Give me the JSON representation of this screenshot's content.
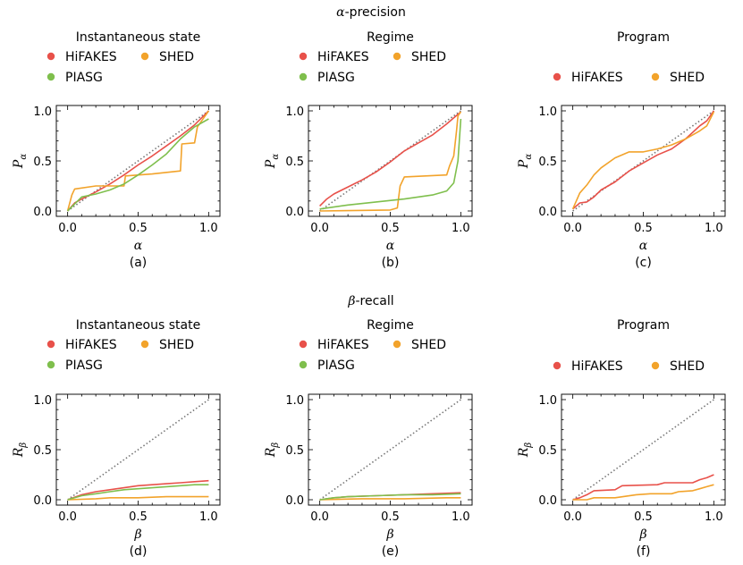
{
  "figure": {
    "sections": [
      {
        "title": "α-precision",
        "title_prefix": "α",
        "title_suffix": "-precision"
      },
      {
        "title": "β-recall",
        "title_prefix": "β",
        "title_suffix": "-recall"
      }
    ]
  },
  "colors": {
    "HiFAKES": "#e8514a",
    "SHED": "#f2a32b",
    "PIASG": "#7fbf4d",
    "diagonal": "#777777"
  },
  "chart_data": [
    {
      "type": "line",
      "panel": "(a)",
      "title": "Instantaneous state",
      "xlabel": "α",
      "ylabel": "P",
      "ylabel_sub": "α",
      "xlim": [
        0,
        1
      ],
      "ylim": [
        0,
        1
      ],
      "xticks": [
        "0.0",
        "0.5",
        "1.0"
      ],
      "yticks": [
        "0.0",
        "0.5",
        "1.0"
      ],
      "legend": [
        "HiFAKES",
        "SHED",
        "PIASG"
      ],
      "diagonal": true,
      "series": [
        {
          "name": "HiFAKES",
          "x": [
            0,
            0.05,
            0.1,
            0.2,
            0.3,
            0.4,
            0.5,
            0.6,
            0.7,
            0.8,
            0.9,
            1.0
          ],
          "y": [
            0,
            0.08,
            0.12,
            0.19,
            0.27,
            0.36,
            0.46,
            0.55,
            0.65,
            0.75,
            0.86,
            1.0
          ]
        },
        {
          "name": "SHED",
          "x": [
            0,
            0.03,
            0.05,
            0.2,
            0.4,
            0.41,
            0.6,
            0.8,
            0.81,
            0.9,
            0.92,
            1.0
          ],
          "y": [
            0,
            0.16,
            0.22,
            0.25,
            0.25,
            0.35,
            0.37,
            0.4,
            0.67,
            0.68,
            0.84,
            1.0
          ]
        },
        {
          "name": "PIASG",
          "x": [
            0,
            0.1,
            0.2,
            0.3,
            0.4,
            0.5,
            0.6,
            0.7,
            0.8,
            0.9,
            1.0
          ],
          "y": [
            0,
            0.14,
            0.17,
            0.21,
            0.27,
            0.36,
            0.46,
            0.57,
            0.72,
            0.84,
            0.92
          ]
        }
      ]
    },
    {
      "type": "line",
      "panel": "(b)",
      "title": "Regime",
      "xlabel": "α",
      "ylabel": "P",
      "ylabel_sub": "α",
      "xlim": [
        0,
        1
      ],
      "ylim": [
        0,
        1
      ],
      "xticks": [
        "0.0",
        "0.5",
        "1.0"
      ],
      "yticks": [
        "0.0",
        "0.5",
        "1.0"
      ],
      "legend": [
        "HiFAKES",
        "SHED",
        "PIASG"
      ],
      "diagonal": true,
      "series": [
        {
          "name": "HiFAKES",
          "x": [
            0,
            0.05,
            0.1,
            0.2,
            0.3,
            0.4,
            0.5,
            0.6,
            0.7,
            0.8,
            0.9,
            1.0
          ],
          "y": [
            0.05,
            0.12,
            0.17,
            0.24,
            0.31,
            0.39,
            0.49,
            0.6,
            0.68,
            0.76,
            0.87,
            0.99
          ]
        },
        {
          "name": "SHED",
          "x": [
            0,
            0.5,
            0.55,
            0.57,
            0.6,
            0.9,
            0.92,
            0.95,
            0.97,
            0.98,
            1.0
          ],
          "y": [
            0,
            0.01,
            0.03,
            0.25,
            0.34,
            0.36,
            0.45,
            0.55,
            0.8,
            0.95,
            0.99
          ]
        },
        {
          "name": "PIASG",
          "x": [
            0,
            0.2,
            0.4,
            0.6,
            0.8,
            0.9,
            0.95,
            0.98,
            1.0
          ],
          "y": [
            0.02,
            0.06,
            0.09,
            0.12,
            0.16,
            0.2,
            0.28,
            0.5,
            0.92
          ]
        }
      ]
    },
    {
      "type": "line",
      "panel": "(c)",
      "title": "Program",
      "xlabel": "α",
      "ylabel": "P",
      "ylabel_sub": "α",
      "xlim": [
        0,
        1
      ],
      "ylim": [
        0,
        1
      ],
      "xticks": [
        "0.0",
        "0.5",
        "1.0"
      ],
      "yticks": [
        "0.0",
        "0.5",
        "1.0"
      ],
      "legend": [
        "HiFAKES",
        "SHED"
      ],
      "diagonal": true,
      "series": [
        {
          "name": "HiFAKES",
          "x": [
            0,
            0.05,
            0.1,
            0.15,
            0.2,
            0.3,
            0.4,
            0.5,
            0.6,
            0.7,
            0.8,
            0.9,
            0.95,
            1.0
          ],
          "y": [
            0.02,
            0.08,
            0.09,
            0.14,
            0.21,
            0.29,
            0.4,
            0.48,
            0.56,
            0.62,
            0.72,
            0.85,
            0.9,
            1.0
          ]
        },
        {
          "name": "SHED",
          "x": [
            0,
            0.05,
            0.1,
            0.15,
            0.2,
            0.3,
            0.4,
            0.5,
            0.6,
            0.7,
            0.8,
            0.9,
            0.95,
            1.0
          ],
          "y": [
            0.02,
            0.18,
            0.26,
            0.36,
            0.43,
            0.53,
            0.59,
            0.59,
            0.62,
            0.66,
            0.72,
            0.8,
            0.85,
            0.99
          ]
        }
      ]
    },
    {
      "type": "line",
      "panel": "(d)",
      "title": "Instantaneous state",
      "xlabel": "β",
      "ylabel": "R",
      "ylabel_sub": "β",
      "xlim": [
        0,
        1
      ],
      "ylim": [
        0,
        1
      ],
      "xticks": [
        "0.0",
        "0.5",
        "1.0"
      ],
      "yticks": [
        "0.0",
        "0.5",
        "1.0"
      ],
      "legend": [
        "HiFAKES",
        "SHED",
        "PIASG"
      ],
      "diagonal": true,
      "series": [
        {
          "name": "HiFAKES",
          "x": [
            0,
            0.1,
            0.2,
            0.3,
            0.4,
            0.5,
            0.6,
            0.7,
            0.8,
            0.9,
            1.0
          ],
          "y": [
            0,
            0.05,
            0.08,
            0.1,
            0.12,
            0.14,
            0.15,
            0.16,
            0.17,
            0.18,
            0.19
          ]
        },
        {
          "name": "SHED",
          "x": [
            0,
            0.2,
            0.3,
            0.5,
            0.7,
            0.9,
            1.0
          ],
          "y": [
            0,
            0.01,
            0.02,
            0.02,
            0.03,
            0.03,
            0.03
          ]
        },
        {
          "name": "PIASG",
          "x": [
            0,
            0.1,
            0.2,
            0.3,
            0.4,
            0.5,
            0.6,
            0.7,
            0.8,
            0.9,
            1.0
          ],
          "y": [
            0,
            0.04,
            0.06,
            0.08,
            0.1,
            0.11,
            0.12,
            0.13,
            0.14,
            0.15,
            0.15
          ]
        }
      ]
    },
    {
      "type": "line",
      "panel": "(e)",
      "title": "Regime",
      "xlabel": "β",
      "ylabel": "R",
      "ylabel_sub": "β",
      "xlim": [
        0,
        1
      ],
      "ylim": [
        0,
        1
      ],
      "xticks": [
        "0.0",
        "0.5",
        "1.0"
      ],
      "yticks": [
        "0.0",
        "0.5",
        "1.0"
      ],
      "legend": [
        "HiFAKES",
        "SHED",
        "PIASG"
      ],
      "diagonal": true,
      "series": [
        {
          "name": "HiFAKES",
          "x": [
            0,
            0.1,
            0.2,
            0.4,
            0.6,
            0.8,
            1.0
          ],
          "y": [
            0,
            0.02,
            0.03,
            0.04,
            0.05,
            0.06,
            0.07
          ]
        },
        {
          "name": "SHED",
          "x": [
            0,
            0.3,
            0.6,
            0.9,
            1.0
          ],
          "y": [
            0,
            0.01,
            0.01,
            0.02,
            0.02
          ]
        },
        {
          "name": "PIASG",
          "x": [
            0,
            0.1,
            0.2,
            0.4,
            0.6,
            0.8,
            1.0
          ],
          "y": [
            0,
            0.02,
            0.03,
            0.04,
            0.05,
            0.05,
            0.06
          ]
        }
      ]
    },
    {
      "type": "line",
      "panel": "(f)",
      "title": "Program",
      "xlabel": "β",
      "ylabel": "R",
      "ylabel_sub": "β",
      "xlim": [
        0,
        1
      ],
      "ylim": [
        0,
        1
      ],
      "xticks": [
        "0.0",
        "0.5",
        "1.0"
      ],
      "yticks": [
        "0.0",
        "0.5",
        "1.0"
      ],
      "legend": [
        "HiFAKES",
        "SHED"
      ],
      "diagonal": true,
      "series": [
        {
          "name": "HiFAKES",
          "x": [
            0,
            0.05,
            0.1,
            0.15,
            0.3,
            0.35,
            0.6,
            0.65,
            0.85,
            0.9,
            0.95,
            1.0
          ],
          "y": [
            0,
            0.02,
            0.05,
            0.09,
            0.1,
            0.14,
            0.15,
            0.17,
            0.17,
            0.2,
            0.22,
            0.25
          ]
        },
        {
          "name": "SHED",
          "x": [
            0,
            0.1,
            0.15,
            0.3,
            0.45,
            0.55,
            0.7,
            0.75,
            0.85,
            0.9,
            0.95,
            1.0
          ],
          "y": [
            0,
            0.0,
            0.02,
            0.02,
            0.05,
            0.06,
            0.06,
            0.08,
            0.09,
            0.11,
            0.13,
            0.15
          ]
        }
      ]
    }
  ]
}
